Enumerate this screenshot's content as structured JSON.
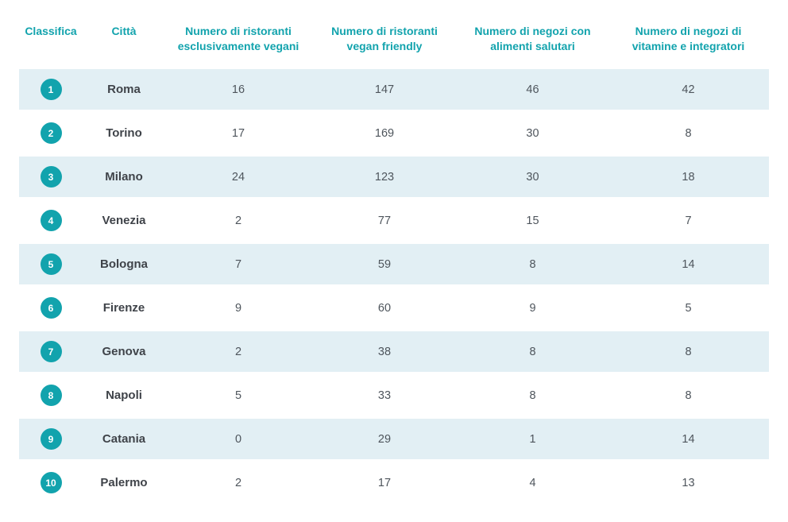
{
  "colors": {
    "accent_teal": "#12a3ad",
    "row_stripe": "#e2eff4",
    "header_text": "#12a3ad",
    "city_text": "#3f4349",
    "value_text": "#4e555c",
    "background": "#ffffff"
  },
  "chart_data": {
    "type": "table",
    "columns": [
      "Classifica",
      "Città",
      "Numero di ristoranti esclusivamente vegani",
      "Numero di ristoranti vegan friendly",
      "Numero di negozi con alimenti salutari",
      "Numero di negozi di vitamine e integratori"
    ],
    "rows": [
      {
        "rank": 1,
        "city": "Roma",
        "values": [
          16,
          147,
          46,
          42
        ]
      },
      {
        "rank": 2,
        "city": "Torino",
        "values": [
          17,
          169,
          30,
          8
        ]
      },
      {
        "rank": 3,
        "city": "Milano",
        "values": [
          24,
          123,
          30,
          18
        ]
      },
      {
        "rank": 4,
        "city": "Venezia",
        "values": [
          2,
          77,
          15,
          7
        ]
      },
      {
        "rank": 5,
        "city": "Bologna",
        "values": [
          7,
          59,
          8,
          14
        ]
      },
      {
        "rank": 6,
        "city": "Firenze",
        "values": [
          9,
          60,
          9,
          5
        ]
      },
      {
        "rank": 7,
        "city": "Genova",
        "values": [
          2,
          38,
          8,
          8
        ]
      },
      {
        "rank": 8,
        "city": "Napoli",
        "values": [
          5,
          33,
          8,
          8
        ]
      },
      {
        "rank": 9,
        "city": "Catania",
        "values": [
          0,
          29,
          1,
          14
        ]
      },
      {
        "rank": 10,
        "city": "Palermo",
        "values": [
          2,
          17,
          4,
          13
        ]
      }
    ],
    "layout": {
      "striped_rows": "odd",
      "value_alignment": "center"
    }
  }
}
